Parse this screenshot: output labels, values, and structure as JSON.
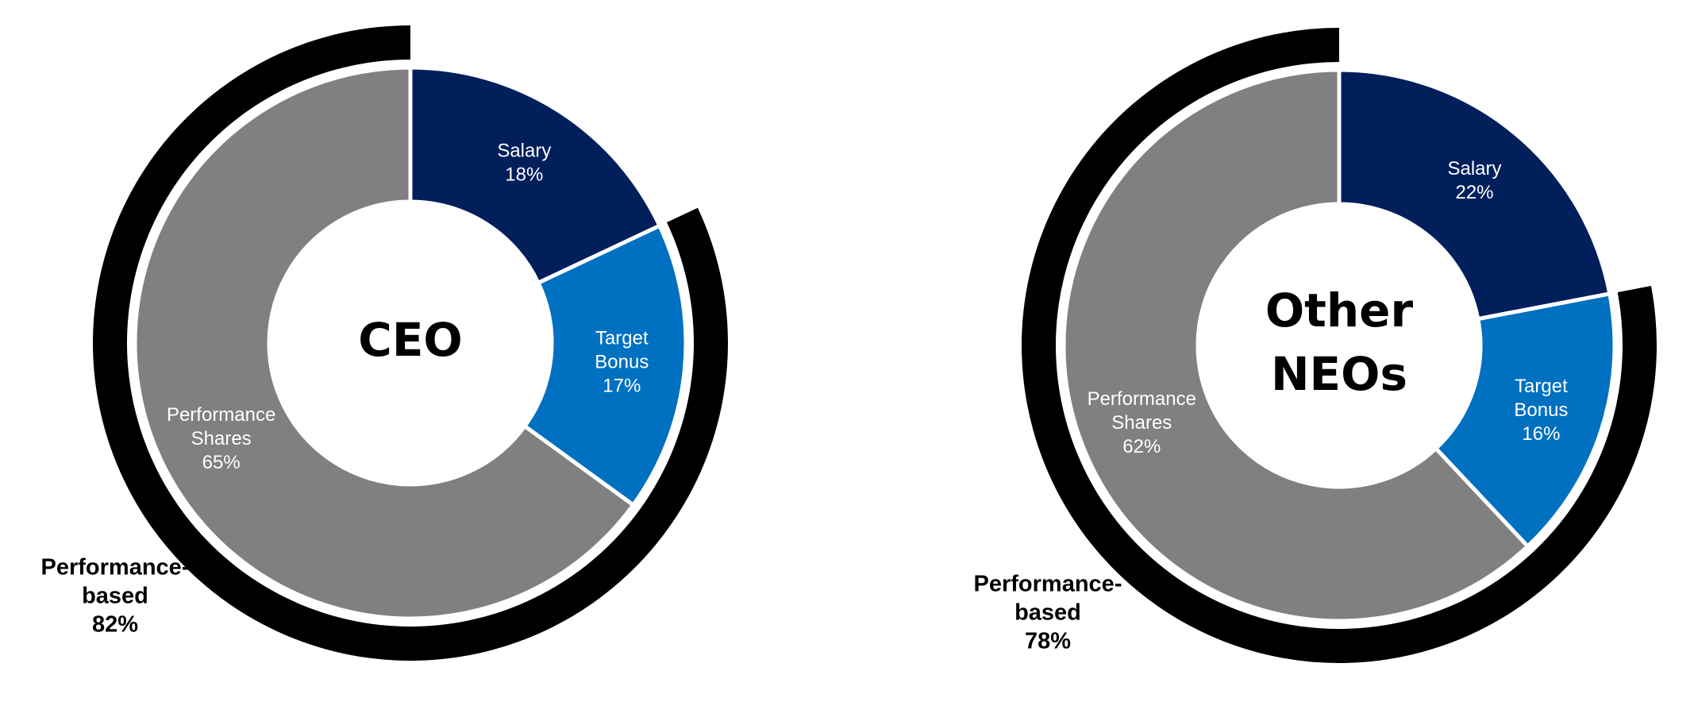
{
  "chart_data": [
    {
      "type": "donut",
      "center_label": [
        "CEO"
      ],
      "segments": [
        {
          "key": "salary",
          "label": [
            "Salary"
          ],
          "value": 18,
          "value_label": "18%",
          "color": "#001f5b"
        },
        {
          "key": "target-bonus",
          "label": [
            "Target",
            "Bonus"
          ],
          "value": 17,
          "value_label": "17%",
          "color": "#0070c0"
        },
        {
          "key": "performance-shares",
          "label": [
            "Performance",
            "Shares"
          ],
          "value": 65,
          "value_label": "65%",
          "color": "#808080"
        }
      ],
      "outer_arc": {
        "label": [
          "Performance-",
          "based"
        ],
        "value": 82,
        "value_label": "82%",
        "color": "#000000"
      }
    },
    {
      "type": "donut",
      "center_label": [
        "Other",
        "NEOs"
      ],
      "segments": [
        {
          "key": "salary",
          "label": [
            "Salary"
          ],
          "value": 22,
          "value_label": "22%",
          "color": "#001f5b"
        },
        {
          "key": "target-bonus",
          "label": [
            "Target",
            "Bonus"
          ],
          "value": 16,
          "value_label": "16%",
          "color": "#0070c0"
        },
        {
          "key": "performance-shares",
          "label": [
            "Performance",
            "Shares"
          ],
          "value": 62,
          "value_label": "62%",
          "color": "#808080"
        }
      ],
      "outer_arc": {
        "label": [
          "Performance-",
          "based"
        ],
        "value": 78,
        "value_label": "78%",
        "color": "#000000"
      }
    }
  ]
}
